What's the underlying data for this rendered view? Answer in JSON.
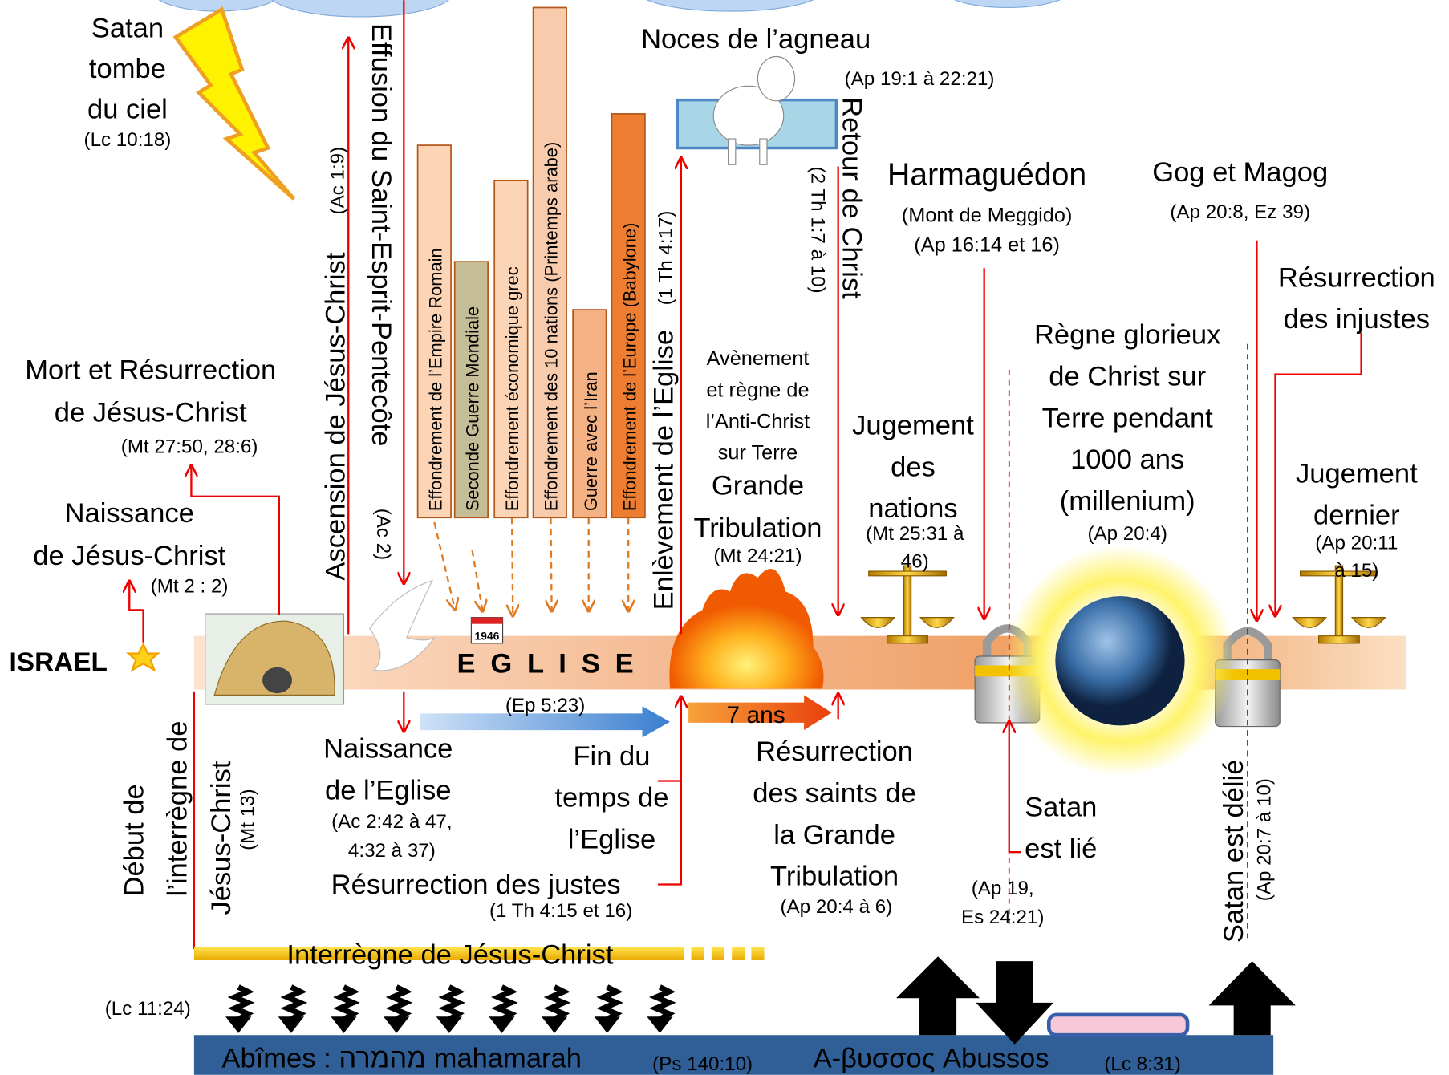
{
  "satan_falls": {
    "lines": [
      "Satan",
      "tombe",
      "du ciel"
    ],
    "ref": "(Lc 10:18)"
  },
  "death_resurrection": {
    "lines": [
      "Mort et Résurrection",
      "de Jésus-Christ"
    ],
    "ref": "(Mt 27:50, 28:6)"
  },
  "birth": {
    "lines": [
      "Naissance",
      "de Jésus-Christ"
    ],
    "ref": "(Mt 2 : 2)"
  },
  "israel": "ISRAEL",
  "ascension": {
    "label": "Ascension de Jésus-Christ",
    "ref": "(Ac 1:9)"
  },
  "effusion": {
    "label": "Effusion du Saint-Esprit-Pentecôte",
    "ref": "(Ac 2)"
  },
  "events": [
    "Effondrement de l’Empire Romain",
    "Seconde Guerre Mondiale",
    "Effondrement économique grec",
    "Effondrement des 10 nations (Printemps arabe)",
    "Guerre avec l’Iran",
    "Effondrement de l’Europe (Babylone)"
  ],
  "year_badge": "1946",
  "rapture": {
    "label": "Enlèvement de l’Eglise",
    "ref": "(1 Th 4:17)"
  },
  "wedding": {
    "label": "Noces de l’agneau",
    "ref": "(Ap 19:1 à 22:21)"
  },
  "return": {
    "label": "Retour de Christ",
    "ref": "(2 Th 1:7 à 10)"
  },
  "antichrist": [
    "Avènement",
    "et règne de",
    "l’Anti-Christ",
    "sur Terre"
  ],
  "tribulation": {
    "lines": [
      "Grande",
      "Tribulation"
    ],
    "ref": "(Mt 24:21)"
  },
  "armageddon": {
    "label": "Harmaguédon",
    "refs": [
      "(Mont de Meggido)",
      "(Ap 16:14 et 16)"
    ]
  },
  "gog": {
    "label": "Gog et Magog",
    "ref": "(Ap 20:8, Ez 39)"
  },
  "resurrection_unjust": [
    "Résurrection",
    "des injustes"
  ],
  "reign": {
    "lines": [
      "Règne glorieux",
      "de Christ sur",
      "Terre pendant",
      "1000 ans",
      "(millenium)"
    ],
    "ref": "(Ap 20:4)"
  },
  "judgment_nations": {
    "lines": [
      "Jugement",
      "des",
      "nations"
    ],
    "refs": [
      "(Mt 25:31 à",
      "46)"
    ]
  },
  "last_judgment": {
    "lines": [
      "Jugement",
      "dernier"
    ],
    "refs": [
      "(Ap 20:11",
      "à 15)"
    ]
  },
  "church": {
    "label": "E G L I S E",
    "ref": "(Ep 5:23)"
  },
  "seven_years": "7 ans",
  "church_birth": {
    "lines": [
      "Naissance",
      "de l’Eglise"
    ],
    "refs": [
      "(Ac 2:42 à 47,",
      "4:32 à 37)"
    ]
  },
  "end_church_time": [
    "Fin du",
    "temps de",
    "l’Eglise"
  ],
  "resurrection_just": {
    "label": "Résurrection des justes",
    "ref": "(1 Th 4:15 et 16)"
  },
  "resurrection_tribulation": {
    "lines": [
      "Résurrection",
      "des saints de",
      "la Grande",
      "Tribulation"
    ],
    "ref": "(Ap 20:4 à 6)"
  },
  "satan_bound": {
    "lines": [
      "Satan",
      "est lié"
    ],
    "refs": [
      "(Ap 19,",
      "Es 24:21)"
    ]
  },
  "satan_released": {
    "label": "Satan est délié",
    "ref": "(Ap 20:7 à 10)"
  },
  "interregnum_start": {
    "lines": [
      "Début de",
      "l’interrègne de",
      "Jésus-Christ"
    ],
    "ref": "(Mt 13)"
  },
  "interregnum": "Interrègne de Jésus-Christ",
  "spirits_ref": "(Lc 11:24)",
  "abyss": {
    "hebrew": "Abîmes : מהמרה mahamarah",
    "hebrew_ref": "(Ps 140:10)",
    "greek": "A-βυσσος Abussos",
    "greek_ref": "(Lc 8:31)"
  }
}
